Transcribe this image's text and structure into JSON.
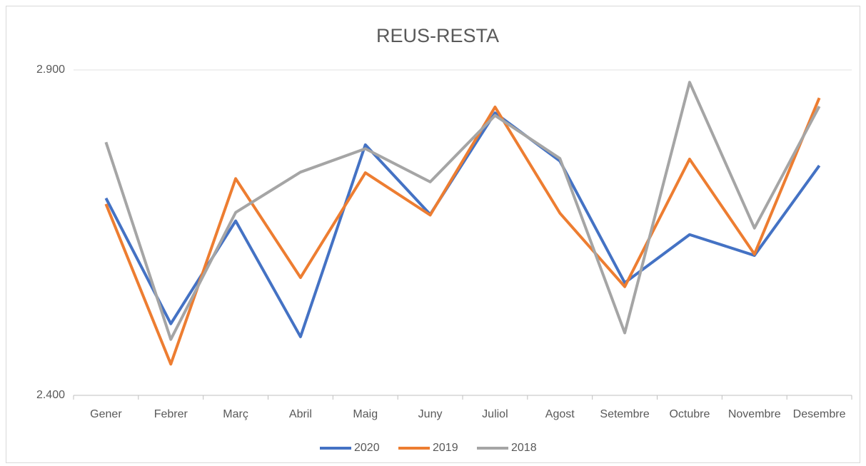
{
  "chart_data": {
    "type": "line",
    "title": "REUS-RESTA",
    "categories": [
      "Gener",
      "Febrer",
      "Març",
      "Abril",
      "Maig",
      "Juny",
      "Juliol",
      "Agost",
      "Setembre",
      "Octubre",
      "Novembre",
      "Desembre"
    ],
    "series": [
      {
        "name": "2020",
        "color": "#4472c4",
        "values": [
          2703,
          2510,
          2668,
          2490,
          2785,
          2678,
          2834,
          2760,
          2573,
          2647,
          2615,
          2753
        ]
      },
      {
        "name": "2019",
        "color": "#ed7d31",
        "values": [
          2694,
          2448,
          2733,
          2581,
          2742,
          2677,
          2843,
          2680,
          2567,
          2763,
          2617,
          2857
        ]
      },
      {
        "name": "2018",
        "color": "#a5a5a5",
        "values": [
          2789,
          2486,
          2681,
          2743,
          2779,
          2728,
          2830,
          2764,
          2496,
          2881,
          2657,
          2844
        ]
      }
    ],
    "ylim": [
      2400,
      2900
    ],
    "yticks": [
      {
        "value": 2400,
        "label": "2.400"
      },
      {
        "value": 2900,
        "label": "2.900"
      }
    ],
    "grid": true,
    "legend": "bottom"
  }
}
